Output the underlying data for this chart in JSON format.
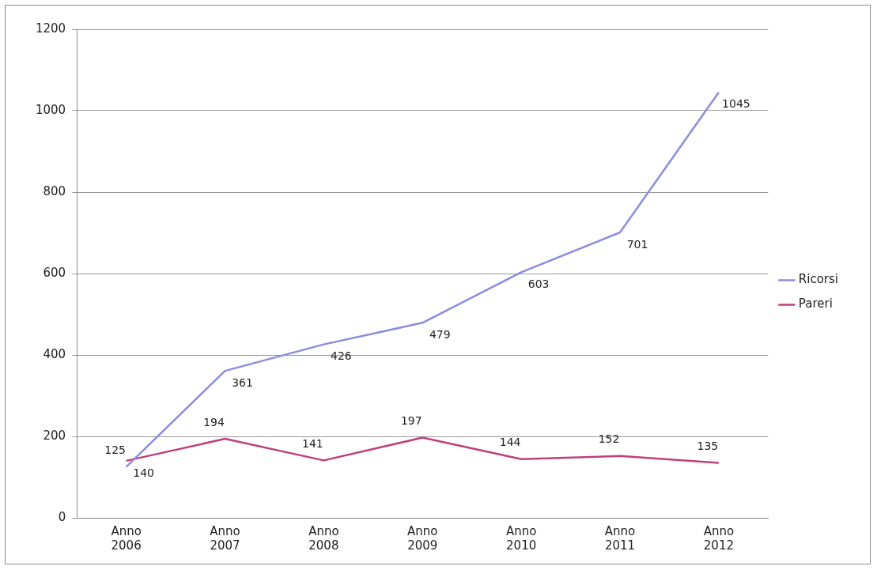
{
  "chart_data": {
    "type": "line",
    "categories": [
      "Anno 2006",
      "Anno 2007",
      "Anno 2008",
      "Anno 2009",
      "Anno 2010",
      "Anno 2011",
      "Anno 2012"
    ],
    "series": [
      {
        "name": "Ricorsi",
        "color": "#8c8ce0",
        "values": [
          125,
          361,
          426,
          479,
          603,
          701,
          1045
        ]
      },
      {
        "name": "Pareri",
        "color": "#c0407a",
        "values": [
          140,
          194,
          141,
          197,
          144,
          152,
          135
        ]
      }
    ],
    "ylim": [
      0,
      1200
    ],
    "yticks": [
      0,
      200,
      400,
      600,
      800,
      1000,
      1200
    ],
    "grid": "y",
    "legend": "right",
    "data_labels": true,
    "marker": "none",
    "line_style": "solid"
  }
}
